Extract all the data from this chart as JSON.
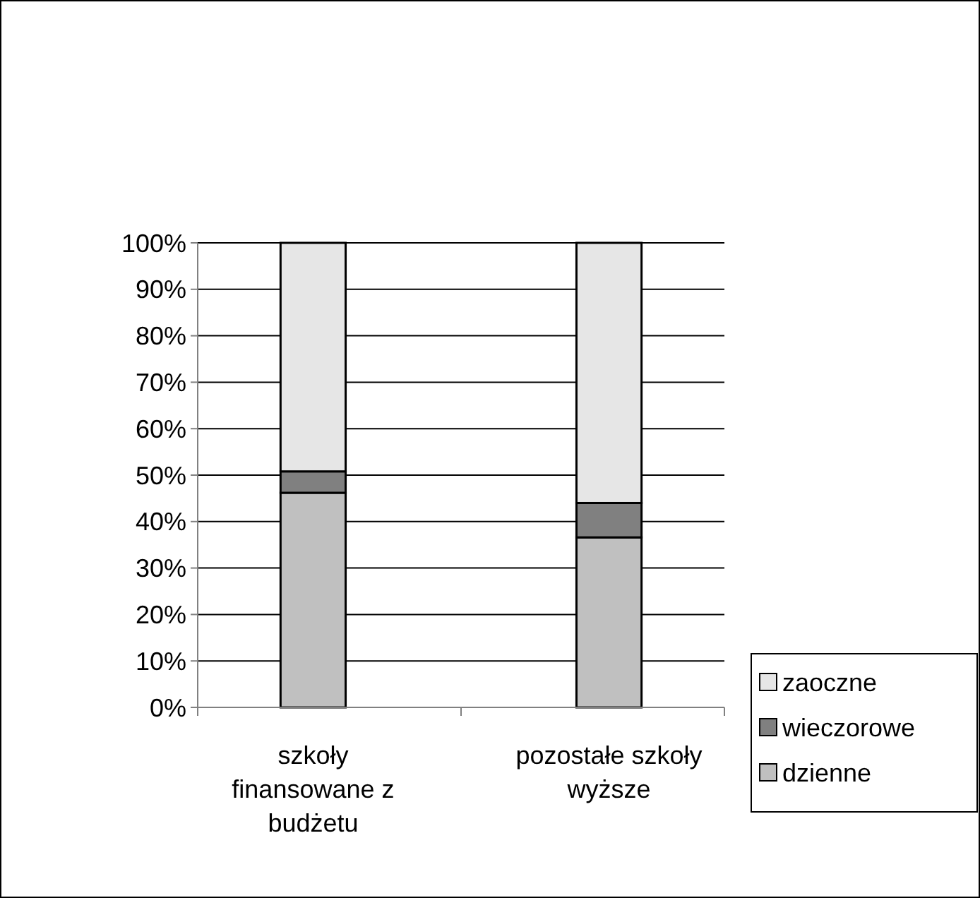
{
  "chart_data": {
    "type": "bar",
    "stacked": true,
    "categories": [
      "szkoły finansowane z budżetu",
      "pozostałe szkoły wyższe"
    ],
    "series": [
      {
        "name": "dzienne",
        "color": "#c0c0c0",
        "values": [
          46.2,
          36.6
        ]
      },
      {
        "name": "wieczorowe",
        "color": "#808080",
        "values": [
          4.6,
          7.4
        ]
      },
      {
        "name": "zaoczne",
        "color": "#e6e6e6",
        "values": [
          49.2,
          56
        ]
      }
    ],
    "ylim": [
      0,
      100
    ],
    "yticks": [
      {
        "value": 0,
        "label": "0%"
      },
      {
        "value": 10,
        "label": "10%"
      },
      {
        "value": 20,
        "label": "20%"
      },
      {
        "value": 30,
        "label": "30%"
      },
      {
        "value": 40,
        "label": "40%"
      },
      {
        "value": 50,
        "label": "50%"
      },
      {
        "value": 60,
        "label": "60%"
      },
      {
        "value": 70,
        "label": "70%"
      },
      {
        "value": 80,
        "label": "80%"
      },
      {
        "value": 90,
        "label": "90%"
      },
      {
        "value": 100,
        "label": "100%"
      }
    ],
    "grid": "y",
    "legend": "right"
  }
}
